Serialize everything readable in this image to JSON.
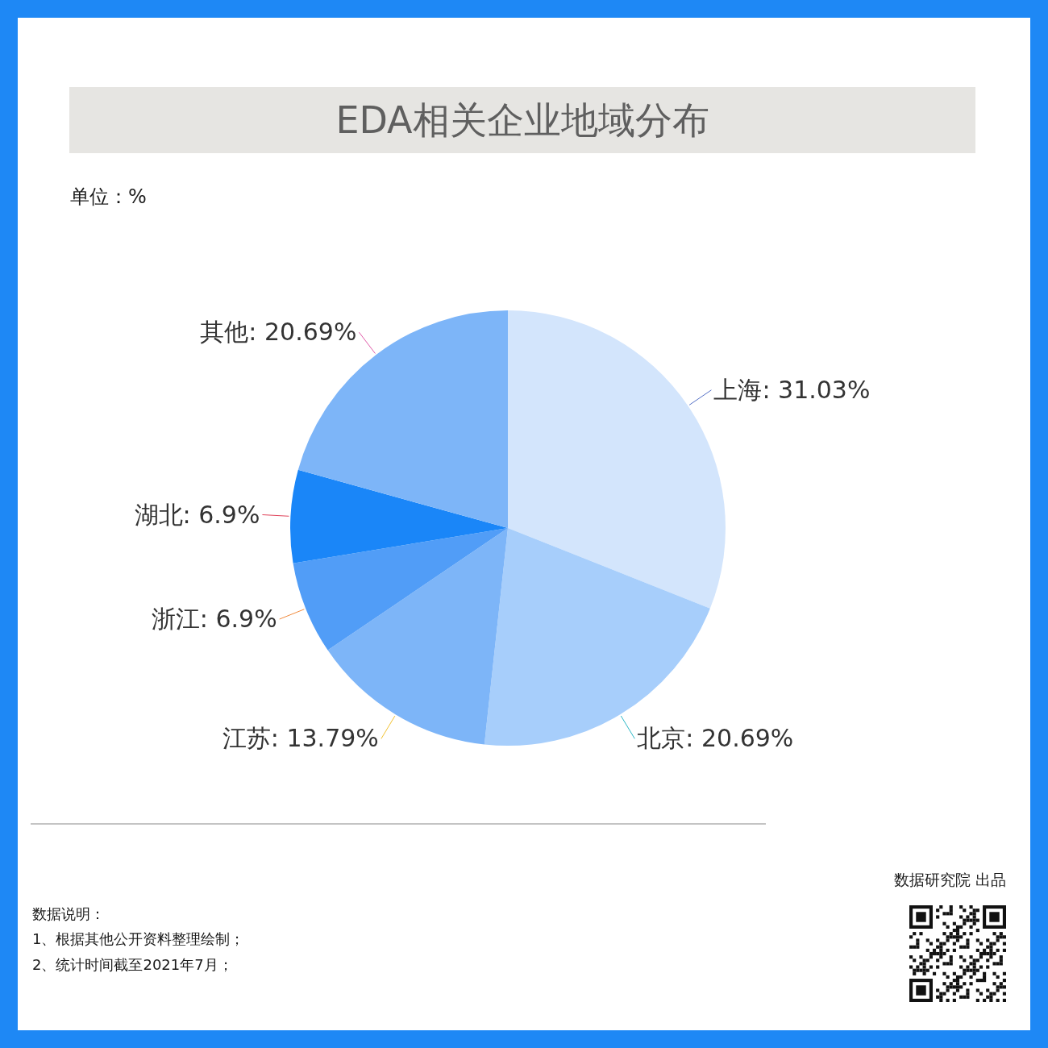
{
  "chart_data": {
    "type": "pie",
    "title": "EDA相关企业地域分布",
    "categories": [
      "上海",
      "北京",
      "江苏",
      "浙江",
      "湖北",
      "其他"
    ],
    "values": [
      31.03,
      20.69,
      13.79,
      6.9,
      6.9,
      20.69
    ],
    "value_labels": [
      "31.03%",
      "20.69%",
      "13.79%",
      "6.9%",
      "6.9%",
      "20.69%"
    ],
    "colors": [
      "#d3e5fc",
      "#a7cefb",
      "#7db5f8",
      "#519df7",
      "#1a86f8",
      "#7db5f8"
    ],
    "legend": false,
    "annotations": [
      "单位：%",
      "数据说明：",
      "1、根据其他公开资料整理绘制；",
      "2、统计时间截至2021年7月；",
      "数据研究院 出品"
    ]
  }
}
